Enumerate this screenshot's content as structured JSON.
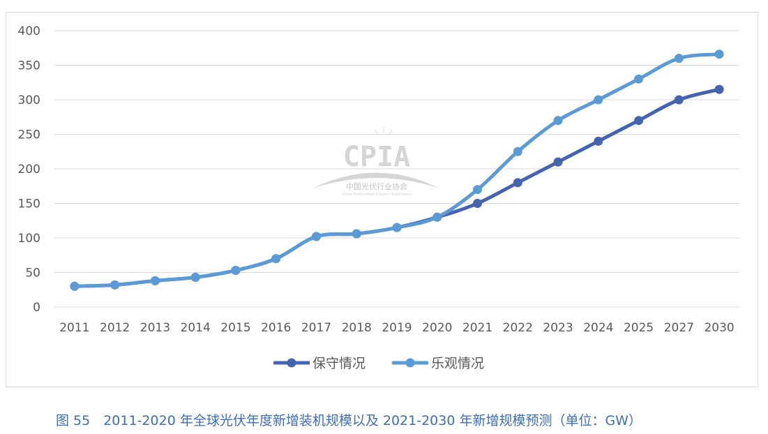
{
  "chart_data": {
    "type": "line",
    "title": "",
    "xlabel": "",
    "ylabel": "",
    "categories": [
      "2011",
      "2012",
      "2013",
      "2014",
      "2015",
      "2016",
      "2017",
      "2018",
      "2019",
      "2020",
      "2021",
      "2022",
      "2023",
      "2024",
      "2025",
      "2027",
      "2030"
    ],
    "ylim": [
      0,
      400
    ],
    "yticks": [
      0,
      50,
      100,
      150,
      200,
      250,
      300,
      350,
      400
    ],
    "grid": true,
    "smooth": true,
    "legend_placement": "bottom",
    "series": [
      {
        "name": "保守情况",
        "color": "#4564b0",
        "values": [
          30,
          32,
          38,
          43,
          53,
          70,
          102,
          106,
          115,
          130,
          150,
          180,
          210,
          240,
          270,
          300,
          315
        ]
      },
      {
        "name": "乐观情况",
        "color": "#5b9bd5",
        "values": [
          30,
          32,
          38,
          43,
          53,
          70,
          102,
          106,
          115,
          130,
          170,
          225,
          270,
          300,
          330,
          360,
          366
        ]
      }
    ]
  },
  "watermark": {
    "logo_text": "CPIA",
    "org_cn": "中国光伏行业协会",
    "org_en": "China Photovoltaic Industry Association"
  },
  "caption": "图 55　2011-2020 年全球光伏年度新增装机规模以及 2021-2030 年新增规模预测（单位：GW）"
}
